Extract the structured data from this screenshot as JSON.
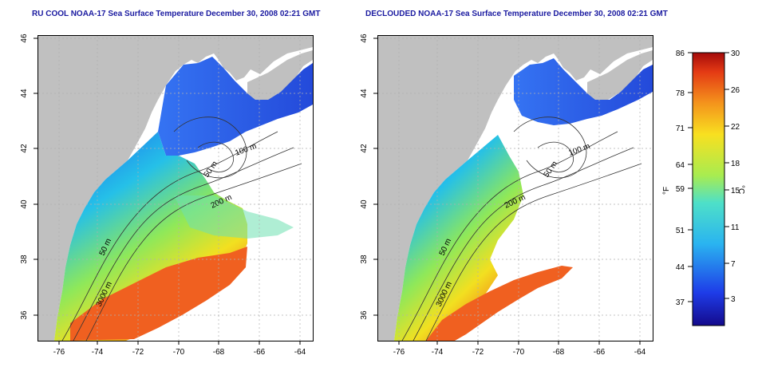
{
  "titles": {
    "left": "RU COOL NOAA-17 Sea Surface Temperature December 30, 2008 02:21 GMT",
    "right": "DECLOUDED NOAA-17 Sea Surface Temperature December 30, 2008 02:21 GMT"
  },
  "axes": {
    "lon_ticks": [
      "-76",
      "-74",
      "-72",
      "-70",
      "-68",
      "-66",
      "-64"
    ],
    "lat_ticks": [
      "36",
      "38",
      "40",
      "42",
      "44",
      "46"
    ]
  },
  "contours": {
    "c50": "50 m",
    "c100": "100 m",
    "c200": "200 m",
    "c3000": "3000 m"
  },
  "colorbar": {
    "f_label": "°F",
    "c_label": "°C",
    "f_ticks": [
      "86",
      "78",
      "71",
      "64",
      "59",
      "51",
      "44",
      "37"
    ],
    "c_ticks": [
      "30",
      "26",
      "22",
      "18",
      "15",
      "11",
      "7",
      "3"
    ]
  },
  "colors": {
    "land": "#c0c0c0",
    "title": "#1a1aa0",
    "grid": "#b0b0b0"
  }
}
